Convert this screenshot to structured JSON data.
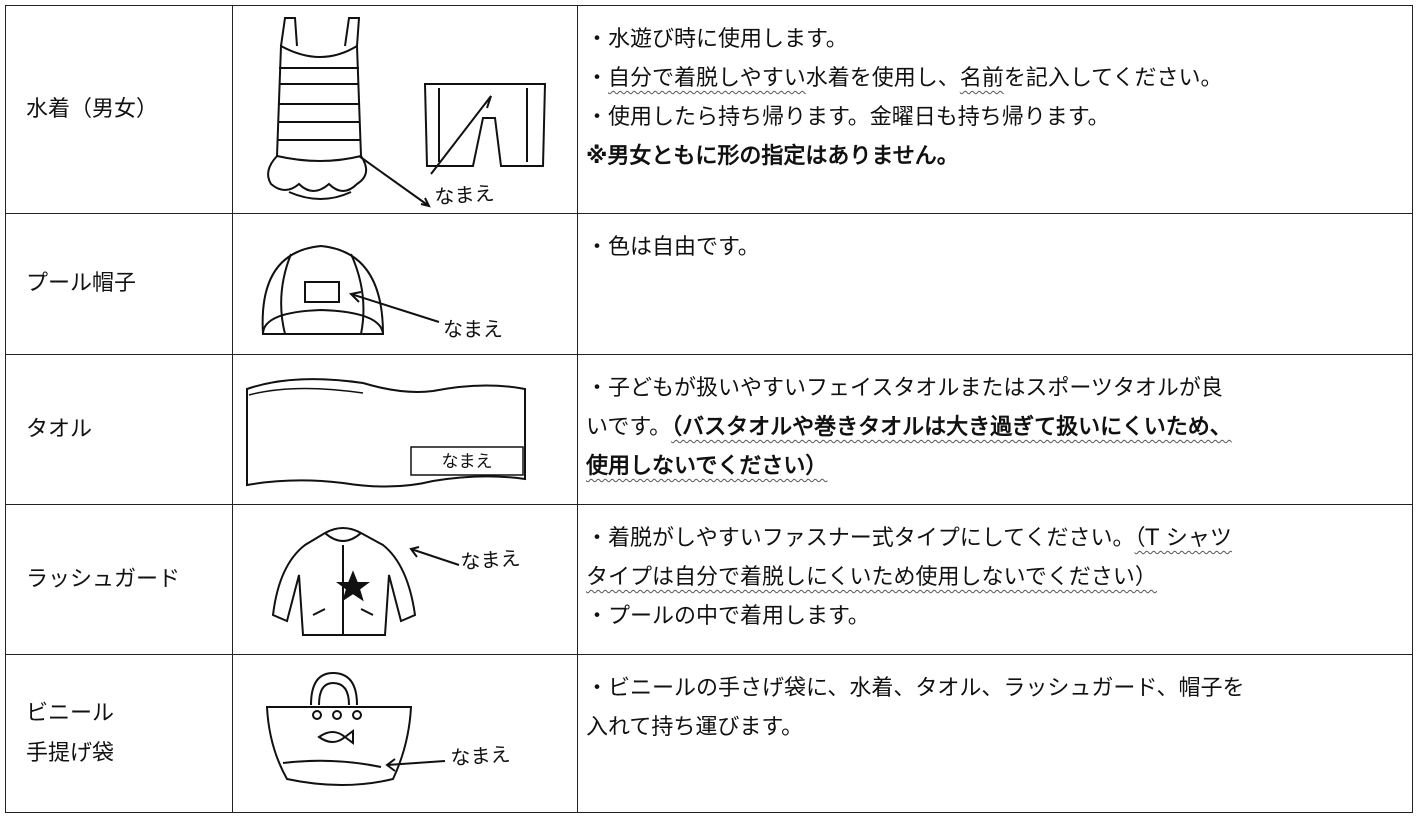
{
  "table": {
    "rows": [
      {
        "item": [
          "水着（男女）"
        ],
        "tag": "なまえ",
        "lines": [
          [
            {
              "text": "・水遊び時に使用します。"
            }
          ],
          [
            {
              "text": "・"
            },
            {
              "text": "自分で着脱しやすい",
              "wavy": true
            },
            {
              "text": "水着を使用し、"
            },
            {
              "text": "名前",
              "wavy": true
            },
            {
              "text": "を記入してください。"
            }
          ],
          [
            {
              "text": "・使用したら持ち帰ります。金曜日も持ち帰ります。"
            }
          ],
          [
            {
              "text": "※男女ともに形の指定はありません。",
              "bold": true
            }
          ]
        ]
      },
      {
        "item": [
          "プール帽子"
        ],
        "tag": "なまえ",
        "lines": [
          [
            {
              "text": "・色は自由です。"
            }
          ]
        ]
      },
      {
        "item": [
          "タオル"
        ],
        "tag": "なまえ",
        "lines": [
          [
            {
              "text": "・子どもが扱いやすいフェイスタオルまたはスポーツタオルが良"
            }
          ],
          [
            {
              "text": "いです。"
            },
            {
              "text": "（バスタオルや巻きタオルは大き過ぎて扱いにくいため、",
              "bold": true,
              "wavy": true
            }
          ],
          [
            {
              "text": "使用しないでください）",
              "bold": true,
              "wavy": true
            }
          ]
        ]
      },
      {
        "item": [
          "ラッシュガード"
        ],
        "tag": "なまえ",
        "lines": [
          [
            {
              "text": "・着脱がしやすいファスナー式タイプにしてください。"
            },
            {
              "text": "（T シャツ",
              "wavy": true
            }
          ],
          [
            {
              "text": "タイプは自分で着脱しにくいため使用しないでください）",
              "wavy": true
            }
          ],
          [
            {
              "text": "・プールの中で着用します。"
            }
          ]
        ]
      },
      {
        "item": [
          "ビニール",
          "手提げ袋"
        ],
        "tag": "なまえ",
        "lines": [
          [
            {
              "text": "・ビニールの手さげ袋に、水着、タオル、ラッシュガード、帽子を"
            }
          ],
          [
            {
              "text": "入れて持ち運びます。"
            }
          ]
        ]
      }
    ]
  }
}
